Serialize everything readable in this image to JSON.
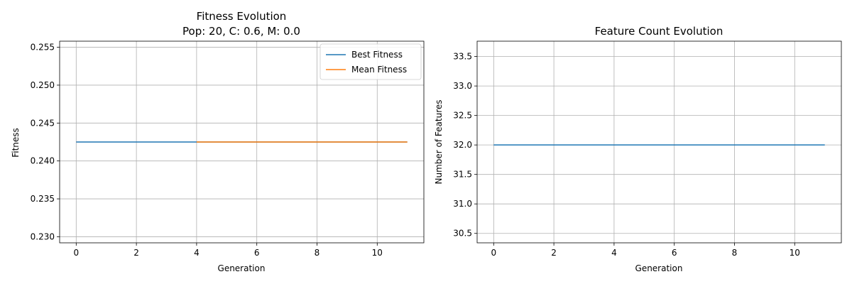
{
  "chart_data": [
    {
      "type": "line",
      "title": "Fitness Evolution",
      "subtitle": "Pop: 20, C: 0.6, M: 0.0",
      "xlabel": "Generation",
      "ylabel": "Fitness",
      "xlim": [
        -0.55,
        11.55
      ],
      "ylim": [
        0.2292,
        0.2558
      ],
      "xticks": [
        0,
        2,
        4,
        6,
        8,
        10
      ],
      "yticks": [
        0.23,
        0.235,
        0.24,
        0.245,
        0.25,
        0.255
      ],
      "ytick_labels": [
        "0.230",
        "0.235",
        "0.240",
        "0.245",
        "0.250",
        "0.255"
      ],
      "grid": true,
      "legend_position": "top-right",
      "series": [
        {
          "name": "Best Fitness",
          "color": "#1f77b4",
          "x": [
            0,
            1,
            2,
            3,
            4,
            5,
            6,
            7,
            8,
            9,
            10,
            11
          ],
          "values": [
            0.2425,
            0.2425,
            0.2425,
            0.2425,
            0.2425,
            0.2425,
            0.2425,
            0.2425,
            0.2425,
            0.2425,
            0.2425,
            0.2425
          ]
        },
        {
          "name": "Mean Fitness",
          "color": "#ff7f0e",
          "x": [
            4,
            5,
            6,
            7,
            8,
            9,
            10,
            11
          ],
          "values": [
            0.2425,
            0.2425,
            0.2425,
            0.2425,
            0.2425,
            0.2425,
            0.2425,
            0.2425
          ]
        }
      ]
    },
    {
      "type": "line",
      "title": "Feature Count Evolution",
      "xlabel": "Generation",
      "ylabel": "Number of Features",
      "xlim": [
        -0.55,
        11.55
      ],
      "ylim": [
        30.34,
        33.76
      ],
      "xticks": [
        0,
        2,
        4,
        6,
        8,
        10
      ],
      "yticks": [
        30.5,
        31.0,
        31.5,
        32.0,
        32.5,
        33.0,
        33.5
      ],
      "ytick_labels": [
        "30.5",
        "31.0",
        "31.5",
        "32.0",
        "32.5",
        "33.0",
        "33.5"
      ],
      "grid": true,
      "series": [
        {
          "color": "#1f77b4",
          "x": [
            0,
            1,
            2,
            3,
            4,
            5,
            6,
            7,
            8,
            9,
            10,
            11
          ],
          "values": [
            32,
            32,
            32,
            32,
            32,
            32,
            32,
            32,
            32,
            32,
            32,
            32
          ]
        }
      ]
    }
  ]
}
